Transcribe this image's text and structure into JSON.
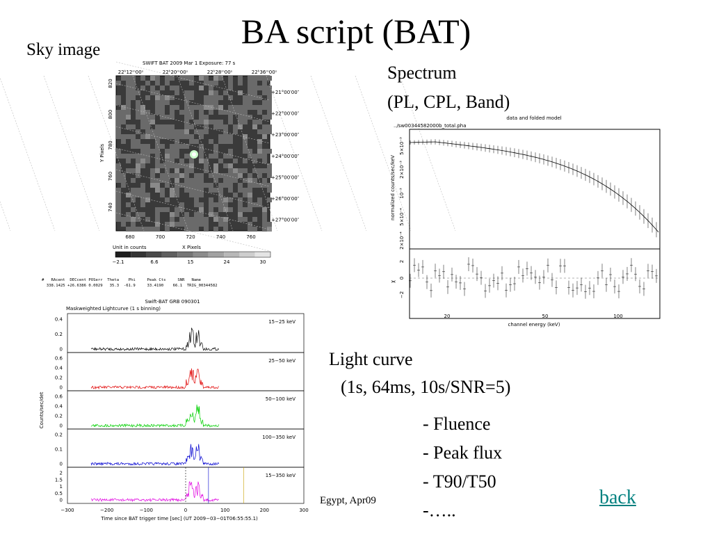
{
  "title": "BA script (BAT)",
  "sky_image": {
    "label": "Sky image",
    "header": "SWIFT BAT    2009 Mar  1     Exposure: 77 s",
    "ra_labels": [
      "22ʰ12ᵐ00ˢ",
      "22ʰ20ᵐ00ˢ",
      "22ʰ28ᵐ00ˢ",
      "22ʰ36ᵐ00ˢ"
    ],
    "dec_labels": [
      "+21°00′00″",
      "+22°00′00″",
      "+23°00′00″",
      "+24°00′00″",
      "+25°00′00″",
      "+26°00′00″",
      "+27°00′00″"
    ],
    "y_ticks": [
      "820",
      "800",
      "780",
      "760",
      "740"
    ],
    "y_axis": "Y Pixels",
    "x_ticks": [
      "680",
      "700",
      "720",
      "740",
      "760"
    ],
    "x_axis": "X Pixels",
    "unit": "Unit in counts",
    "colorbar_ticks": [
      "−2.1",
      "6.6",
      "15",
      "24",
      "30"
    ]
  },
  "spectrum": {
    "label_lines": [
      "Spectrum",
      "(PL, CPL, Band)"
    ],
    "title": "data and folded model",
    "file": "../sw00344582000b_total.pha",
    "y_axis": "normalized counts/sec/keV",
    "y_ticks": [
      "5×10⁻³",
      "2×10⁻³",
      "10⁻³",
      "5×10⁻⁴",
      "2×10⁻⁴"
    ],
    "residual_axis": "χ",
    "residual_ticks": [
      "2",
      "0",
      "−2"
    ],
    "x_ticks": [
      "20",
      "50",
      "100"
    ],
    "x_axis": "channel energy (keV)"
  },
  "catalog": {
    "header": "#   RAcent  DECcent POSerr  Theta    Phi     Peak Cts     SNR   Name",
    "row": "  338.1425 +26.6386 0.0029   35.3  -61.9     33.4190    66.1  TRIG_00344582"
  },
  "lightcurve": {
    "title": "Swift-BAT GRB 090301",
    "subtitle": "Maskweighted Lightcurve (1 s binning)",
    "y_axis": "Counts/sec/det",
    "panels": [
      {
        "band": "15−25 keV",
        "color": "#000000",
        "yticks": [
          "0.4",
          "0.2",
          "0"
        ]
      },
      {
        "band": "25−50 keV",
        "color": "#e00000",
        "yticks": [
          "0.6",
          "0.4",
          "0.2",
          "0"
        ]
      },
      {
        "band": "50−100 keV",
        "color": "#00d000",
        "yticks": [
          "0.6",
          "0.4",
          "0.2",
          "0"
        ]
      },
      {
        "band": "100−350 keV",
        "color": "#0000d0",
        "yticks": [
          "0.2",
          "0.1",
          "0"
        ]
      },
      {
        "band": "15−350 keV",
        "color": "#e000e0",
        "yticks": [
          "2",
          "1.5",
          "1",
          "0.5",
          "0"
        ]
      }
    ],
    "x_ticks": [
      "−300",
      "−200",
      "−100",
      "0",
      "100",
      "200",
      "300"
    ],
    "x_axis": "Time since BAT trigger time [sec] (UT 2009−03−01T06:55:55.1)"
  },
  "light_curve_label": [
    "Light curve",
    "(1s, 64ms, 10s/SNR=5)"
  ],
  "bullets": [
    "- Fluence",
    "- Peak flux",
    "- T90/T50",
    "-….."
  ],
  "footer": "Egypt, Apr09",
  "link": "back"
}
